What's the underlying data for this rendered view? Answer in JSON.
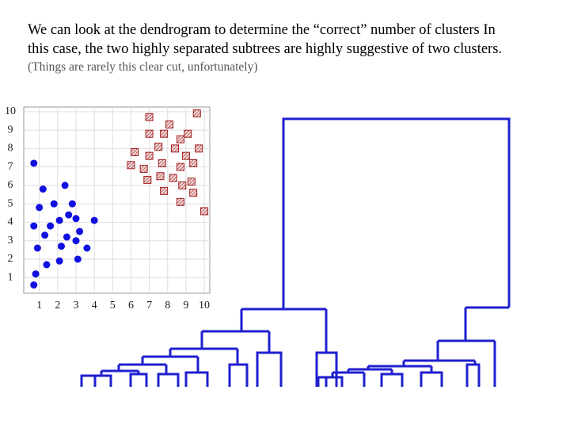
{
  "text": {
    "paragraph": [
      "We can look at the dendrogram to determine the “correct” number of clusters In",
      "this case, the two highly separated subtrees are highly suggestive of two clusters."
    ],
    "note": "(Things are rarely this clear cut, unfortunately)"
  },
  "chart_data": {
    "type": "scatter",
    "xlim": [
      0.15,
      10.3
    ],
    "ylim": [
      0.15,
      10.25
    ],
    "xticks": [
      1,
      2,
      3,
      4,
      5,
      6,
      7,
      8,
      9,
      10
    ],
    "yticks": [
      1,
      2,
      3,
      4,
      5,
      6,
      7,
      8,
      9,
      10
    ],
    "grid": true,
    "series": [
      {
        "color": "#1010e0",
        "marker": "circle",
        "x": [
          0.7,
          1.2,
          2.4,
          1.0,
          1.8,
          2.8,
          0.7,
          1.6,
          2.6,
          3.0,
          4.0,
          2.1,
          1.3,
          2.5,
          3.2,
          0.9,
          2.2,
          3.0,
          3.6,
          1.4,
          2.1,
          3.1,
          0.8,
          0.7
        ],
        "y": [
          7.2,
          5.8,
          6.0,
          4.8,
          5.0,
          5.0,
          3.8,
          3.8,
          4.4,
          4.2,
          4.1,
          4.1,
          3.3,
          3.2,
          3.5,
          2.6,
          2.7,
          3.0,
          2.6,
          1.7,
          1.9,
          2.0,
          1.2,
          0.6
        ]
      },
      {
        "color": "#a02020",
        "marker": "square",
        "x": [
          7.0,
          9.6,
          8.1,
          7.0,
          7.8,
          9.1,
          8.7,
          7.5,
          8.4,
          9.7,
          6.2,
          7.0,
          9.0,
          7.7,
          6.0,
          6.7,
          8.7,
          9.4,
          7.6,
          8.3,
          6.9,
          9.3,
          8.8,
          7.8,
          9.4,
          8.7,
          10.0
        ],
        "y": [
          9.7,
          9.9,
          9.3,
          8.8,
          8.8,
          8.8,
          8.5,
          8.1,
          8.0,
          8.0,
          7.8,
          7.6,
          7.6,
          7.2,
          7.1,
          6.9,
          7.0,
          7.2,
          6.5,
          6.4,
          6.3,
          6.2,
          6.0,
          5.7,
          5.6,
          5.1,
          4.6
        ]
      }
    ]
  }
}
